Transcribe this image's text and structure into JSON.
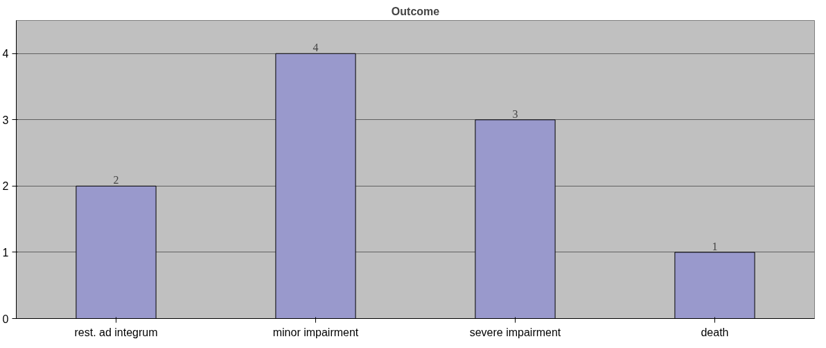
{
  "chart_data": {
    "type": "bar",
    "title": "Outcome",
    "categories": [
      "rest. ad integrum",
      "minor impairment",
      "severe impairment",
      "death"
    ],
    "values": [
      2,
      4,
      3,
      1
    ],
    "color": "#9999cc",
    "ylim": [
      0,
      4.5
    ],
    "yticks": [
      0,
      1,
      2,
      3,
      4
    ],
    "grid": "y",
    "data_labels": true
  }
}
